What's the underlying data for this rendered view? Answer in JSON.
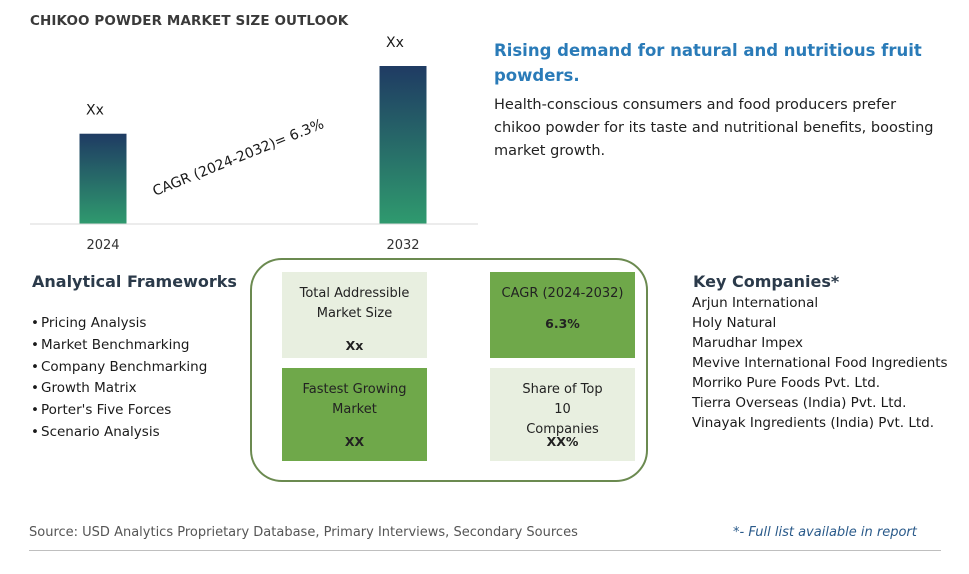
{
  "title": "CHIKOO POWDER MARKET SIZE OUTLOOK",
  "chart_data": {
    "type": "bar",
    "categories": [
      "2024",
      "2032"
    ],
    "values": [
      1,
      1.75
    ],
    "data_labels": [
      "Xx",
      "Xx"
    ],
    "annotation": "CAGR (2024-2032)=  6.3%",
    "grid": false,
    "colors": {
      "bar_top": "#1f3b63",
      "bar_bottom": "#2f9a6e"
    }
  },
  "headline": "Rising demand for natural and nutritious fruit powders.",
  "description": "Health-conscious consumers and food producers prefer chikoo powder for its taste and nutritional benefits, boosting market growth.",
  "frameworks": {
    "title": "Analytical Frameworks",
    "items": [
      "Pricing Analysis",
      "Market Benchmarking",
      "Company Benchmarking",
      "Growth Matrix",
      "Porter's Five Forces",
      "Scenario Analysis"
    ]
  },
  "metrics": [
    {
      "label": "Total Addressible Market Size",
      "value": "Xx"
    },
    {
      "label": "CAGR (2024-2032)",
      "value": "6.3%"
    },
    {
      "label": "Fastest Growing Market",
      "value": "XX"
    },
    {
      "label": "Share of Top 10 Companies",
      "value": "XX%"
    }
  ],
  "companies": {
    "title": "Key Companies*",
    "items": [
      "Arjun International",
      "Holy Natural",
      "Marudhar Impex",
      "Mevive International Food Ingredients",
      "Morriko Pure Foods Pvt. Ltd.",
      "Tierra Overseas (India) Pvt. Ltd.",
      "Vinayak Ingredients (India) Pvt. Ltd."
    ]
  },
  "source": "Source: USD Analytics Proprietary Database, Primary Interviews, Secondary Sources",
  "footnote": "*- Full list available in report",
  "colors": {
    "accent": "#2a7bb8",
    "metric_dark": "#6fa84a",
    "metric_light": "#e8efe0",
    "box_border": "#6b8a50"
  }
}
